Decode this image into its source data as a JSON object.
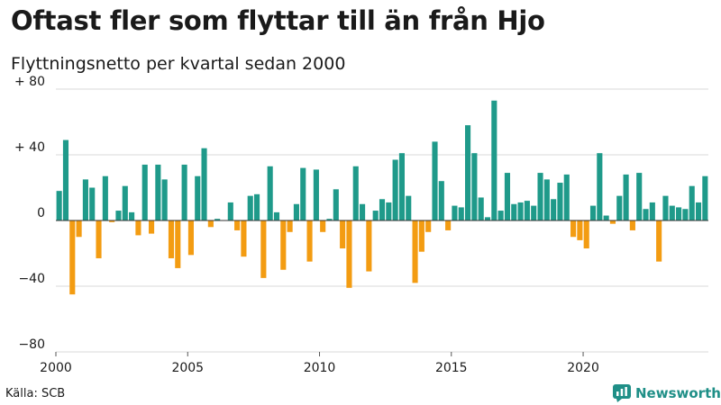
{
  "header": {
    "title": "Oftast fler som flyttar till än från Hjo",
    "subtitle": "Flyttningsnetto per kvartal sedan 2000"
  },
  "footer": {
    "source": "Källa: SCB",
    "brand": "Newsworthy"
  },
  "colors": {
    "positive": "#1f9a8a",
    "negative": "#f39c12",
    "grid": "#d9d9d9",
    "zero_line": "#333333"
  },
  "chart_data": {
    "type": "bar",
    "title": "Oftast fler som flyttar till än från Hjo",
    "subtitle": "Flyttningsnetto per kvartal sedan 2000",
    "xlabel": "",
    "ylabel": "",
    "x_start_year": 2000,
    "x_tick_labels": [
      "2000",
      "2005",
      "2010",
      "2015",
      "2020"
    ],
    "y_ticks": [
      {
        "value": 80,
        "label": "+ 80"
      },
      {
        "value": 40,
        "label": "+ 40"
      },
      {
        "value": 0,
        "label": "0"
      },
      {
        "value": -40,
        "label": "−40"
      },
      {
        "value": -80,
        "label": "−80"
      }
    ],
    "ylim": [
      -80,
      80
    ],
    "grid": true,
    "legend": "none",
    "quarters_per_year": 4,
    "values": [
      18,
      49,
      -45,
      -10,
      25,
      20,
      -23,
      27,
      -1,
      6,
      21,
      5,
      -9,
      34,
      -8,
      34,
      25,
      -23,
      -29,
      34,
      -21,
      27,
      44,
      -4,
      1,
      0,
      11,
      -6,
      -22,
      15,
      16,
      -35,
      33,
      5,
      -30,
      -7,
      10,
      32,
      -25,
      31,
      -7,
      1,
      19,
      -17,
      -41,
      33,
      10,
      -31,
      6,
      13,
      11,
      37,
      41,
      15,
      -38,
      -19,
      -7,
      48,
      24,
      -6,
      9,
      8,
      58,
      41,
      14,
      2,
      73,
      6,
      29,
      10,
      11,
      12,
      9,
      29,
      25,
      13,
      23,
      28,
      -10,
      -12,
      -17,
      9,
      41,
      3,
      -2,
      15,
      28,
      -6,
      29,
      7,
      11,
      -25,
      15,
      9,
      8,
      7,
      21,
      11,
      27
    ]
  }
}
